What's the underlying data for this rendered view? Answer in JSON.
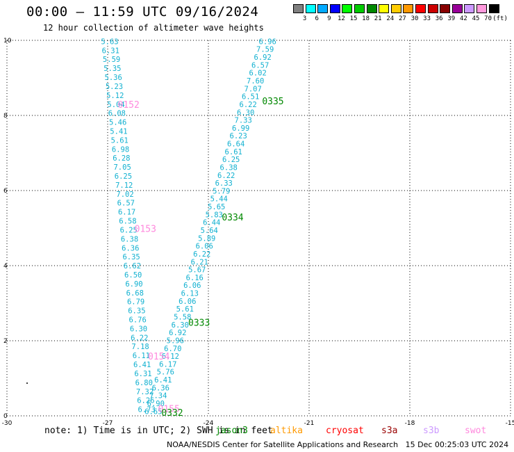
{
  "header": {
    "title": "00:00 – 11:59 UTC 09/16/2024",
    "subtitle": "12 hour collection of altimeter wave heights"
  },
  "color_scale": {
    "unit_label": "(ft)",
    "bins": [
      {
        "label": "",
        "color": "#808080"
      },
      {
        "label": "3",
        "color": "#00ffff"
      },
      {
        "label": "6",
        "color": "#00aaff"
      },
      {
        "label": "9",
        "color": "#0000ff"
      },
      {
        "label": "12",
        "color": "#00ff00"
      },
      {
        "label": "15",
        "color": "#00cc00"
      },
      {
        "label": "18",
        "color": "#008800"
      },
      {
        "label": "21",
        "color": "#ffff00"
      },
      {
        "label": "24",
        "color": "#ffcc00"
      },
      {
        "label": "27",
        "color": "#ff9900"
      },
      {
        "label": "30",
        "color": "#ff0000"
      },
      {
        "label": "33",
        "color": "#cc0000"
      },
      {
        "label": "36",
        "color": "#880000"
      },
      {
        "label": "39",
        "color": "#990099"
      },
      {
        "label": "42",
        "color": "#cc99ff"
      },
      {
        "label": "45",
        "color": "#ff99dd"
      },
      {
        "label": "70",
        "color": "#000000"
      }
    ]
  },
  "chart_data": {
    "type": "scatter",
    "title": "00:00 – 11:59 UTC 09/16/2024",
    "subtitle": "12 hour collection of altimeter wave heights",
    "xlim": [
      -30,
      -15
    ],
    "ylim": [
      0,
      10
    ],
    "x_ticks": [
      "-30",
      "-27",
      "-24",
      "-21",
      "-18",
      "-15"
    ],
    "y_ticks": [
      "0",
      "2",
      "4",
      "6",
      "8",
      "10"
    ],
    "grid": true,
    "tracks": [
      {
        "mission": "swot",
        "time_labels": [
          "0152",
          "0153",
          "0154",
          "0155"
        ],
        "color": "#ff88dd"
      },
      {
        "mission": "jason3",
        "time_labels": [
          "0332",
          "0333",
          "0334",
          "0335"
        ],
        "color": "#008800"
      }
    ],
    "swot_track": {
      "x_start": -27.2,
      "y_start": 9.9,
      "x_end": -26.1,
      "y_end": 0.1,
      "values": [
        "5.63",
        "6.31",
        "5.59",
        "5.35",
        "5.36",
        "5.23",
        "5.12",
        "5.04",
        "6.08",
        "5.46",
        "5.41",
        "5.61",
        "6.98",
        "6.28",
        "7.05",
        "6.25",
        "7.12",
        "7.02",
        "6.57",
        "6.17",
        "6.58",
        "6.25",
        "6.38",
        "6.36",
        "6.35",
        "6.62",
        "6.50",
        "6.90",
        "6.68",
        "6.79",
        "6.35",
        "6.76",
        "6.30",
        "6.22",
        "7.18",
        "6.11",
        "6.41",
        "6.31",
        "6.80",
        "7.32",
        "6.26",
        "6.73"
      ]
    },
    "jason3_track": {
      "x_start": -22.5,
      "y_start": 9.9,
      "x_end": -25.9,
      "y_end": 0.05,
      "values": [
        "6.96",
        "7.59",
        "6.92",
        "6.57",
        "6.02",
        "7.60",
        "7.07",
        "6.51",
        "6.22",
        "6.30",
        "7.33",
        "6.99",
        "6.23",
        "6.64",
        "6.61",
        "6.25",
        "6.38",
        "6.22",
        "6.33",
        "5.79",
        "5.44",
        "5.65",
        "5.83",
        "6.44",
        "5.64",
        "5.89",
        "6.06",
        "6.22",
        "6.21",
        "5.67",
        "6.16",
        "6.06",
        "6.13",
        "6.06",
        "5.61",
        "5.58",
        "6.30",
        "6.92",
        "5.96",
        "6.70",
        "6.12",
        "6.17",
        "5.76",
        "6.41",
        "6.36",
        "7.34",
        "6.90",
        "6.65"
      ]
    },
    "track_time_labels": [
      {
        "text": "0152",
        "mission": "swot",
        "x": -26.7,
        "y": 8.2
      },
      {
        "text": "0153",
        "mission": "swot",
        "x": -26.2,
        "y": 4.9
      },
      {
        "text": "0154",
        "mission": "swot",
        "x": -25.8,
        "y": 1.5
      },
      {
        "text": "0155",
        "mission": "swot",
        "x": -25.5,
        "y": 0.1
      },
      {
        "text": "0335",
        "mission": "jason3",
        "x": -22.4,
        "y": 8.3
      },
      {
        "text": "0334",
        "mission": "jason3",
        "x": -23.6,
        "y": 5.2
      },
      {
        "text": "0333",
        "mission": "jason3",
        "x": -24.6,
        "y": 2.4
      },
      {
        "text": "0332",
        "mission": "jason3",
        "x": -25.4,
        "y": 0.0
      }
    ]
  },
  "note": "note: 1) Time is in UTC; 2) SWH is in feet",
  "missions": [
    {
      "name": "jason3",
      "color": "#008800",
      "offset": 246
    },
    {
      "name": "altika",
      "color": "#ff9900",
      "offset": 325
    },
    {
      "name": "cryosat",
      "color": "#ff0000",
      "offset": 405
    },
    {
      "name": "s3a",
      "color": "#990000",
      "offset": 485
    },
    {
      "name": "s3b",
      "color": "#cc99ff",
      "offset": 545
    },
    {
      "name": "swot",
      "color": "#ff88dd",
      "offset": 605
    }
  ],
  "footer": "NOAA/NESDIS Center for Satellite Applications and Research   15 Dec 00:25:03 UTC 2024"
}
